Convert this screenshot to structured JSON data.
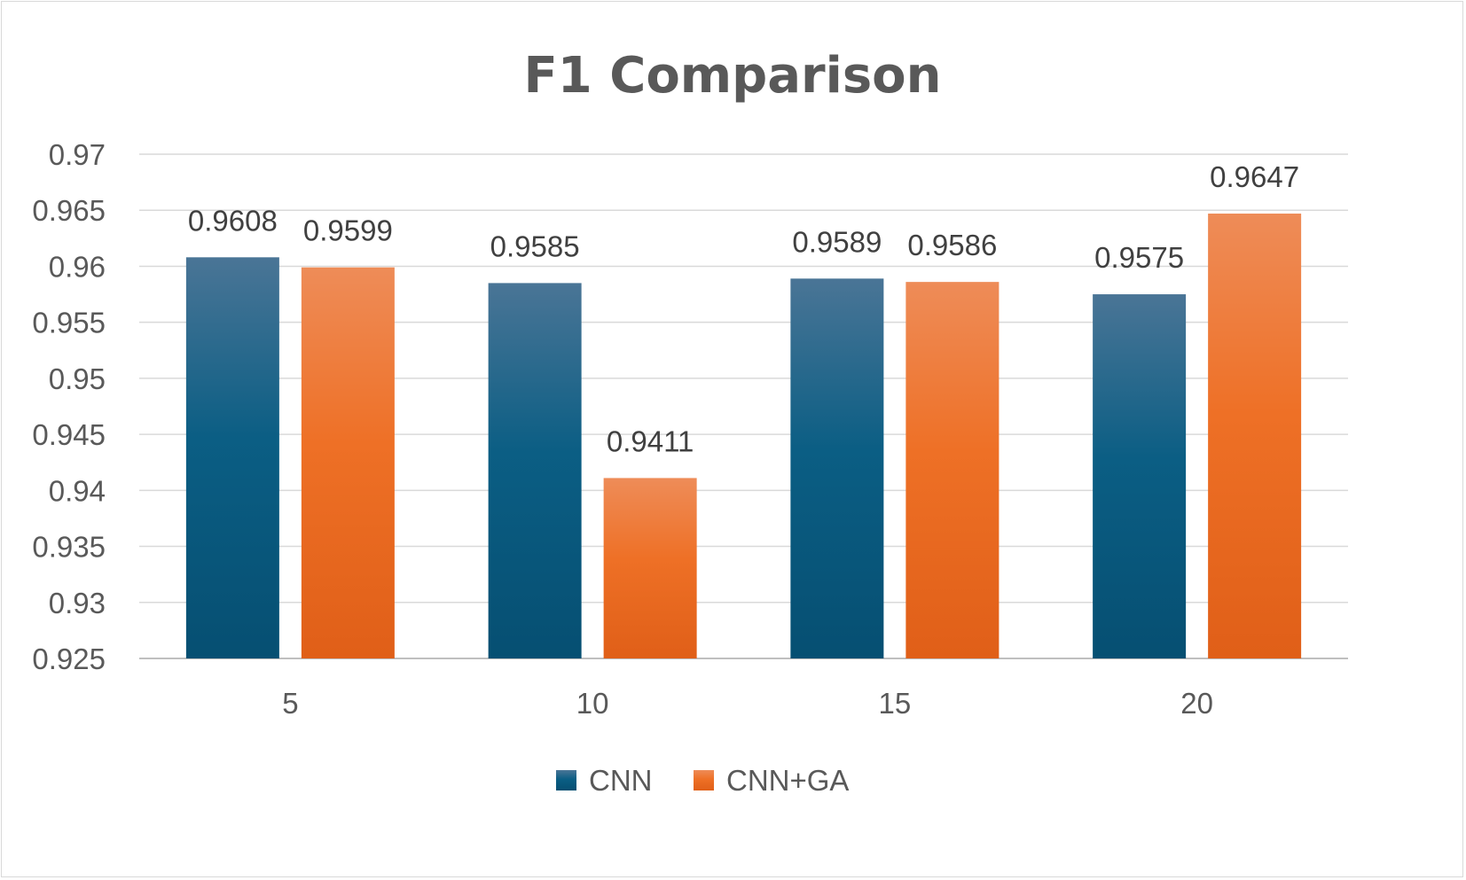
{
  "chart_data": {
    "type": "bar",
    "title": "F1 Comparison",
    "xlabel": "",
    "ylabel": "",
    "categories": [
      "5",
      "10",
      "15",
      "20"
    ],
    "series": [
      {
        "name": "CNN",
        "values": [
          0.9608,
          0.9585,
          0.9589,
          0.9575
        ],
        "labels": [
          "0.9608",
          "0.9585",
          "0.9589",
          "0.9575"
        ]
      },
      {
        "name": "CNN+GA",
        "values": [
          0.9599,
          0.9411,
          0.9586,
          0.9647
        ],
        "labels": [
          "0.9599",
          "0.9411",
          "0.9586",
          "0.9647"
        ]
      }
    ],
    "ylim": [
      0.925,
      0.97
    ],
    "yticks": [
      0.925,
      0.93,
      0.935,
      0.94,
      0.945,
      0.95,
      0.955,
      0.96,
      0.965,
      0.97
    ],
    "ytick_labels": [
      "0.925",
      "0.93",
      "0.935",
      "0.94",
      "0.945",
      "0.95",
      "0.955",
      "0.96",
      "0.965",
      "0.97"
    ],
    "grid": true,
    "legend": "bottom",
    "colors": {
      "CNN": [
        "#4a7596",
        "#0b5e84",
        "#064f72"
      ],
      "CNN+GA": [
        "#ee8c58",
        "#ee7026",
        "#e05f18"
      ]
    }
  }
}
